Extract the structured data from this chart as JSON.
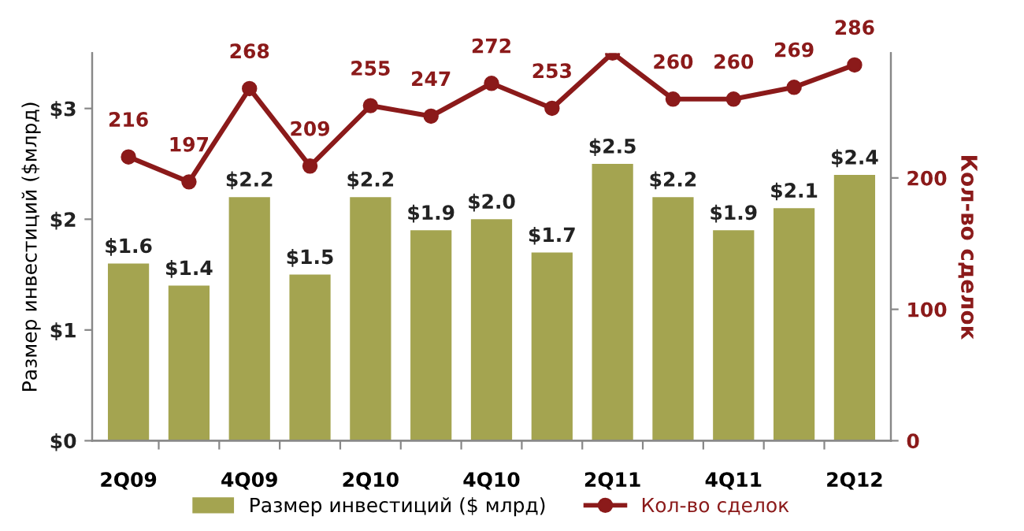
{
  "chart_data": {
    "type": "bar",
    "ylabel": "Размер инвестиций ($млрд)",
    "y2label": "Кол-во сделок",
    "categories": [
      "2Q09",
      null,
      "4Q09",
      null,
      "2Q10",
      null,
      "4Q10",
      null,
      "2Q11",
      null,
      "4Q11",
      null,
      "2Q12"
    ],
    "series": [
      {
        "name": "Размер инвестиций ($ млрд)",
        "color": "#a4a450",
        "values": [
          1.6,
          1.4,
          2.2,
          1.5,
          2.2,
          1.9,
          2.0,
          1.7,
          2.5,
          2.2,
          1.9,
          2.1,
          2.4
        ],
        "value_labels": [
          "$1.6",
          "$1.4",
          "$2.2",
          "$1.5",
          "$2.2",
          "$1.9",
          "$2.0",
          "$1.7",
          "$2.5",
          "$2.2",
          "$1.9",
          "$2.1",
          "$2.4"
        ]
      },
      {
        "name": "Кол-во сделок",
        "type": "line",
        "axis": "y2",
        "color": "#8b1a1a",
        "marker": "circle",
        "values": [
          216,
          197,
          268,
          209,
          255,
          247,
          272,
          253,
          295,
          260,
          260,
          269,
          286
        ],
        "value_labels": [
          "216",
          "197",
          "268",
          "209",
          "255",
          "247",
          "272",
          "253",
          null,
          "260",
          "260",
          "269",
          "286"
        ]
      }
    ],
    "ylim": [
      0,
      3.5
    ],
    "yticks": [
      {
        "value": 0,
        "label": "$0"
      },
      {
        "value": 1,
        "label": "$1"
      },
      {
        "value": 2,
        "label": "$2"
      },
      {
        "value": 3,
        "label": "$3"
      }
    ],
    "y2lim": [
      0,
      295
    ],
    "y2ticks": [
      0,
      100,
      200
    ],
    "grid": false,
    "legend": "bottom"
  }
}
